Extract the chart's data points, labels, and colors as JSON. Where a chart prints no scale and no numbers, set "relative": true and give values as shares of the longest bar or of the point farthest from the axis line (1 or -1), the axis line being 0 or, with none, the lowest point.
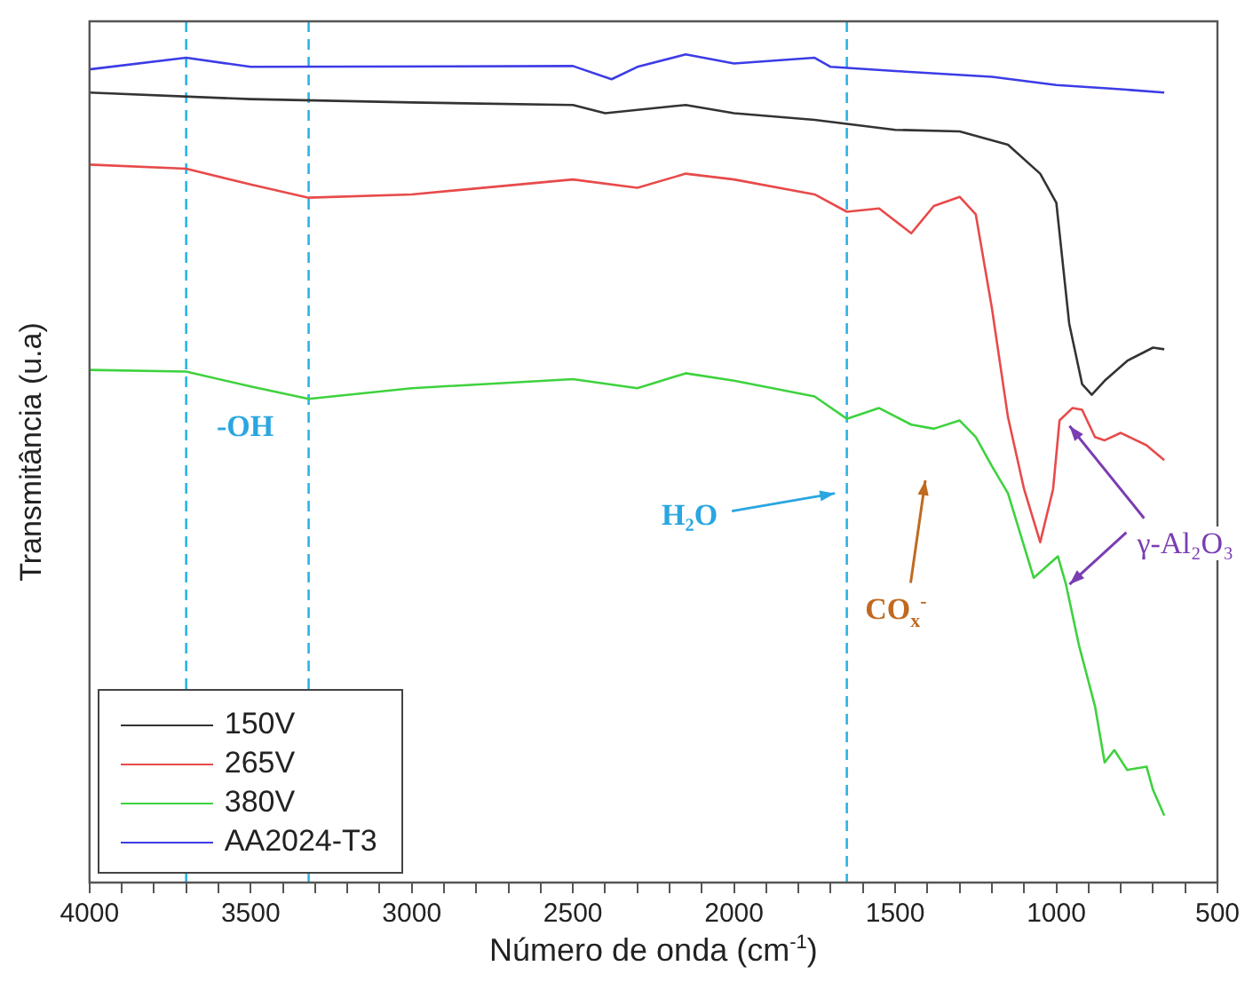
{
  "chart_data": {
    "type": "line",
    "relative": true,
    "xlabel": "Número de onda (cm$^{-1}$)",
    "ylabel": "Transmitância (u.a)",
    "xlim": [
      4000,
      500
    ],
    "xticks": [
      4000,
      {
        "value": 3900,
        "label": null
      },
      {
        "value": 3800,
        "label": null
      },
      {
        "value": 3700,
        "label": null
      },
      {
        "value": 3600,
        "label": null
      },
      3500,
      {
        "value": 3400,
        "label": null
      },
      {
        "value": 3300,
        "label": null
      },
      {
        "value": 3200,
        "label": null
      },
      {
        "value": 3100,
        "label": null
      },
      3000,
      {
        "value": 2900,
        "label": null
      },
      {
        "value": 2800,
        "label": null
      },
      {
        "value": 2700,
        "label": null
      },
      {
        "value": 2600,
        "label": null
      },
      2500,
      {
        "value": 2400,
        "label": null
      },
      {
        "value": 2300,
        "label": null
      },
      {
        "value": 2200,
        "label": null
      },
      {
        "value": 2100,
        "label": null
      },
      2000,
      {
        "value": 1900,
        "label": null
      },
      {
        "value": 1800,
        "label": null
      },
      {
        "value": 1700,
        "label": null
      },
      {
        "value": 1600,
        "label": null
      },
      1500,
      {
        "value": 1400,
        "label": null
      },
      {
        "value": 1300,
        "label": null
      },
      {
        "value": 1200,
        "label": null
      },
      {
        "value": 1100,
        "label": null
      },
      1000,
      {
        "value": 900,
        "label": null
      },
      {
        "value": 800,
        "label": null
      },
      {
        "value": 700,
        "label": null
      },
      {
        "value": 600,
        "label": null
      },
      500
    ],
    "tick_labels": "x",
    "grid": false,
    "legend": "bottom left",
    "marker": "none",
    "line_style": "solid",
    "series": [
      {
        "name": "150V",
        "color": "#333333",
        "x": [
          4000,
          3500,
          3000,
          2500,
          2400,
          2150,
          2000,
          1750,
          1500,
          1300,
          1150,
          1050,
          1000,
          960,
          920,
          890,
          850,
          780,
          700,
          665
        ],
        "values": [
          0.954,
          0.946,
          0.942,
          0.939,
          0.929,
          0.939,
          0.929,
          0.921,
          0.909,
          0.907,
          0.891,
          0.856,
          0.821,
          0.675,
          0.602,
          0.589,
          0.606,
          0.63,
          0.646,
          0.644
        ]
      },
      {
        "name": "265V",
        "color": "#e84a4a",
        "x": [
          4000,
          3700,
          3500,
          3320,
          3000,
          2500,
          2300,
          2150,
          2000,
          1750,
          1650,
          1550,
          1450,
          1380,
          1300,
          1250,
          1200,
          1150,
          1100,
          1050,
          1010,
          990,
          950,
          920,
          880,
          850,
          800,
          720,
          665
        ],
        "values": [
          0.867,
          0.862,
          0.843,
          0.827,
          0.831,
          0.849,
          0.839,
          0.856,
          0.849,
          0.831,
          0.81,
          0.814,
          0.784,
          0.817,
          0.828,
          0.807,
          0.694,
          0.562,
          0.475,
          0.411,
          0.475,
          0.558,
          0.573,
          0.571,
          0.538,
          0.534,
          0.543,
          0.528,
          0.51
        ]
      },
      {
        "name": "380V",
        "color": "#3ed23e",
        "x": [
          4000,
          3700,
          3500,
          3320,
          3000,
          2500,
          2300,
          2150,
          2000,
          1750,
          1650,
          1550,
          1450,
          1380,
          1300,
          1250,
          1200,
          1150,
          1070,
          995,
          970,
          930,
          880,
          850,
          820,
          780,
          720,
          700,
          665
        ],
        "values": [
          0.619,
          0.617,
          0.599,
          0.584,
          0.597,
          0.608,
          0.597,
          0.615,
          0.606,
          0.587,
          0.56,
          0.573,
          0.553,
          0.548,
          0.558,
          0.538,
          0.503,
          0.47,
          0.368,
          0.394,
          0.36,
          0.287,
          0.213,
          0.145,
          0.16,
          0.136,
          0.14,
          0.112,
          0.081
        ]
      },
      {
        "name": "AA2024-T3",
        "color": "#3c3ce6",
        "x": [
          4000,
          3700,
          3500,
          2500,
          2380,
          2300,
          2150,
          2000,
          1750,
          1700,
          1500,
          1200,
          1000,
          800,
          665
        ],
        "values": [
          0.982,
          0.996,
          0.985,
          0.986,
          0.97,
          0.985,
          1,
          0.989,
          0.996,
          0.985,
          0.98,
          0.973,
          0.963,
          0.958,
          0.954
        ]
      }
    ],
    "ref_lines": [
      {
        "axis": "x",
        "value": 3700,
        "color": "#2ab4e6",
        "line_style": "dashed"
      },
      {
        "axis": "x",
        "value": 3320,
        "color": "#2ab4e6",
        "line_style": "dashed"
      },
      {
        "axis": "x",
        "value": 1650,
        "color": "#2ab4e6",
        "line_style": "dashed"
      }
    ],
    "annotations": [
      "-OH",
      {
        "text": "H₂O",
        "x": 1665,
        "y": 0.47
      },
      "CO$_{x}$$^{-}$",
      {
        "text": "γ-Al₂O₃",
        "x": 970,
        "y": 0.56
      }
    ]
  }
}
